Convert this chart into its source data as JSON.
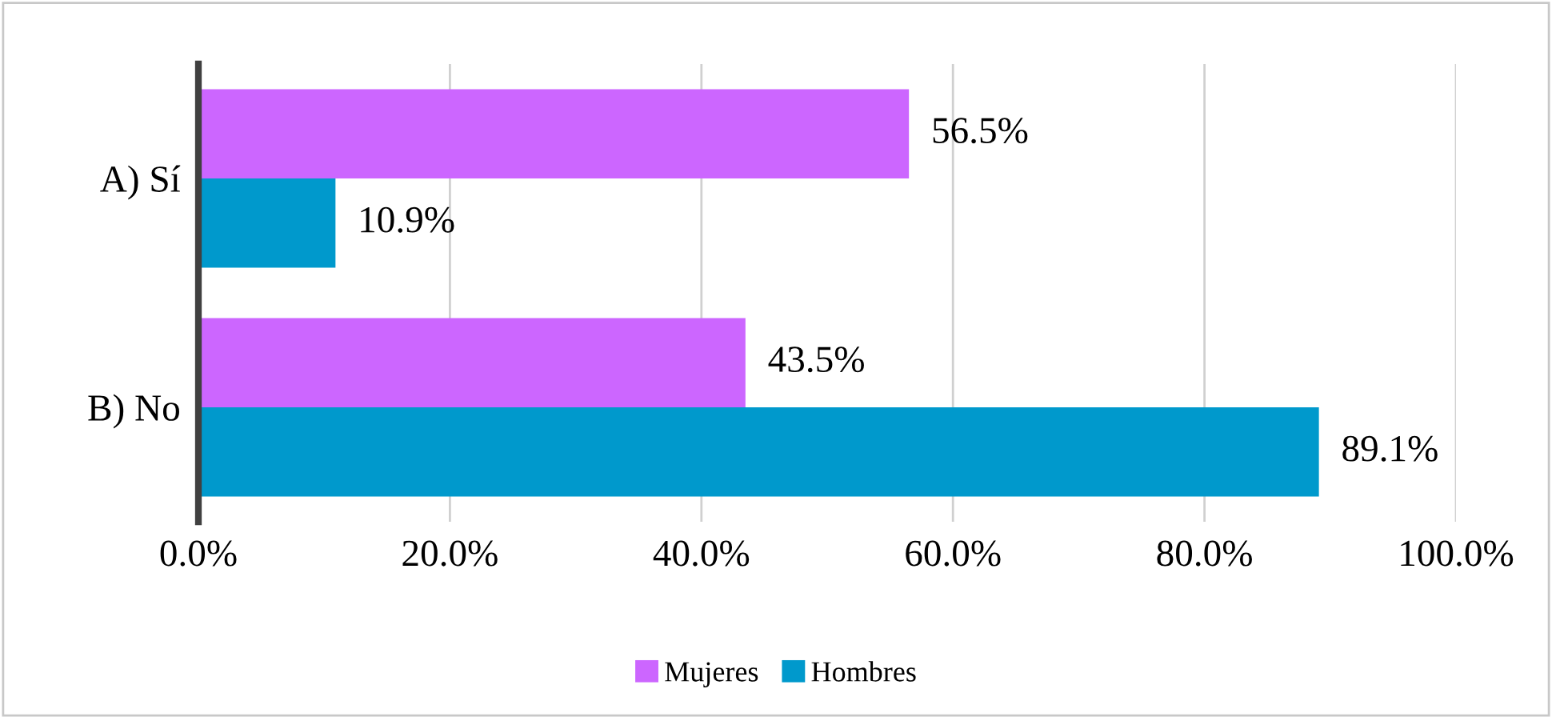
{
  "chart_data": {
    "type": "bar",
    "orientation": "horizontal",
    "categories": [
      "A) Sí",
      "B) No"
    ],
    "series": [
      {
        "name": "Mujeres",
        "color": "#cc66ff",
        "values": [
          56.5,
          43.5
        ],
        "value_labels": [
          "56.5%",
          "43.5%"
        ]
      },
      {
        "name": "Hombres",
        "color": "#0099cc",
        "values": [
          10.9,
          89.1
        ],
        "value_labels": [
          "10.9%",
          "89.1%"
        ]
      }
    ],
    "xlim": [
      0,
      100
    ],
    "xticks": [
      {
        "value": 0,
        "label": "0.0%"
      },
      {
        "value": 20,
        "label": "20.0%"
      },
      {
        "value": 40,
        "label": "40.0%"
      },
      {
        "value": 60,
        "label": "60.0%"
      },
      {
        "value": 80,
        "label": "80.0%"
      },
      {
        "value": 100,
        "label": "100.0%"
      }
    ],
    "grid": "x",
    "legend": "bottom"
  }
}
